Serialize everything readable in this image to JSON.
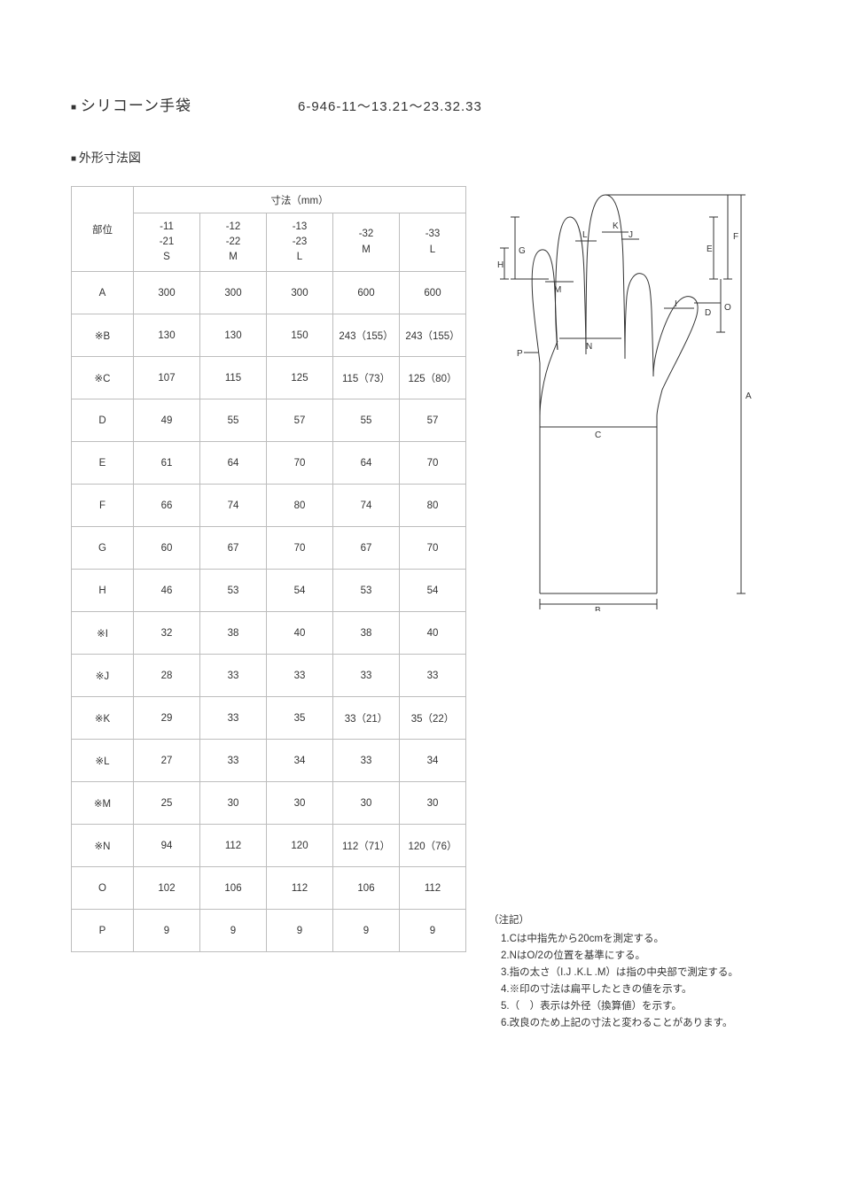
{
  "header": {
    "title": "シリコーン手袋",
    "code": "6-946-11～13.21～23.32.33"
  },
  "subtitle": "外形寸法図",
  "table": {
    "corner_label": "部位",
    "dim_label": "寸法（mm）",
    "size_headers": [
      [
        "-11",
        "-21",
        "S"
      ],
      [
        "-12",
        "-22",
        "M"
      ],
      [
        "-13",
        "-23",
        "L"
      ],
      [
        "-32",
        "M"
      ],
      [
        "-33",
        "L"
      ]
    ],
    "rows": [
      {
        "label": "A",
        "vals": [
          "300",
          "300",
          "300",
          "600",
          "600"
        ]
      },
      {
        "label": "※B",
        "vals": [
          "130",
          "130",
          "150",
          "243（155）",
          "243（155）"
        ]
      },
      {
        "label": "※C",
        "vals": [
          "107",
          "115",
          "125",
          "115（73）",
          "125（80）"
        ]
      },
      {
        "label": "D",
        "vals": [
          "49",
          "55",
          "57",
          "55",
          "57"
        ]
      },
      {
        "label": "E",
        "vals": [
          "61",
          "64",
          "70",
          "64",
          "70"
        ]
      },
      {
        "label": "F",
        "vals": [
          "66",
          "74",
          "80",
          "74",
          "80"
        ]
      },
      {
        "label": "G",
        "vals": [
          "60",
          "67",
          "70",
          "67",
          "70"
        ]
      },
      {
        "label": "H",
        "vals": [
          "46",
          "53",
          "54",
          "53",
          "54"
        ]
      },
      {
        "label": "※I",
        "vals": [
          "32",
          "38",
          "40",
          "38",
          "40"
        ]
      },
      {
        "label": "※J",
        "vals": [
          "28",
          "33",
          "33",
          "33",
          "33"
        ]
      },
      {
        "label": "※K",
        "vals": [
          "29",
          "33",
          "35",
          "33（21）",
          "35（22）"
        ]
      },
      {
        "label": "※L",
        "vals": [
          "27",
          "33",
          "34",
          "33",
          "34"
        ]
      },
      {
        "label": "※M",
        "vals": [
          "25",
          "30",
          "30",
          "30",
          "30"
        ]
      },
      {
        "label": "※N",
        "vals": [
          "94",
          "112",
          "120",
          "112（71）",
          "120（76）"
        ]
      },
      {
        "label": "O",
        "vals": [
          "102",
          "106",
          "112",
          "106",
          "112"
        ]
      },
      {
        "label": "P",
        "vals": [
          "9",
          "9",
          "9",
          "9",
          "9"
        ]
      }
    ]
  },
  "notes": {
    "title": "（注記）",
    "items": [
      "1.Cは中指先から20cmを測定する。",
      "2.NはO/2の位置を基準にする。",
      "3.指の太さ（I.J .K.L .M）は指の中央部で測定する。",
      "4.※印の寸法は扁平したときの値を示す。",
      "5.（　）表示は外径（換算値）を示す。",
      "6.改良のため上記の寸法と変わることがあります。"
    ]
  },
  "diagram": {
    "labels": {
      "A": "A",
      "B": "B",
      "C": "C",
      "D": "D",
      "E": "E",
      "F": "F",
      "G": "G",
      "H": "H",
      "I": "I",
      "J": "J",
      "K": "K",
      "L": "L",
      "M": "M",
      "N": "N",
      "O": "O",
      "P": "P"
    },
    "stroke": "#333333",
    "stroke_width": 1,
    "fill": "#ffffff"
  }
}
